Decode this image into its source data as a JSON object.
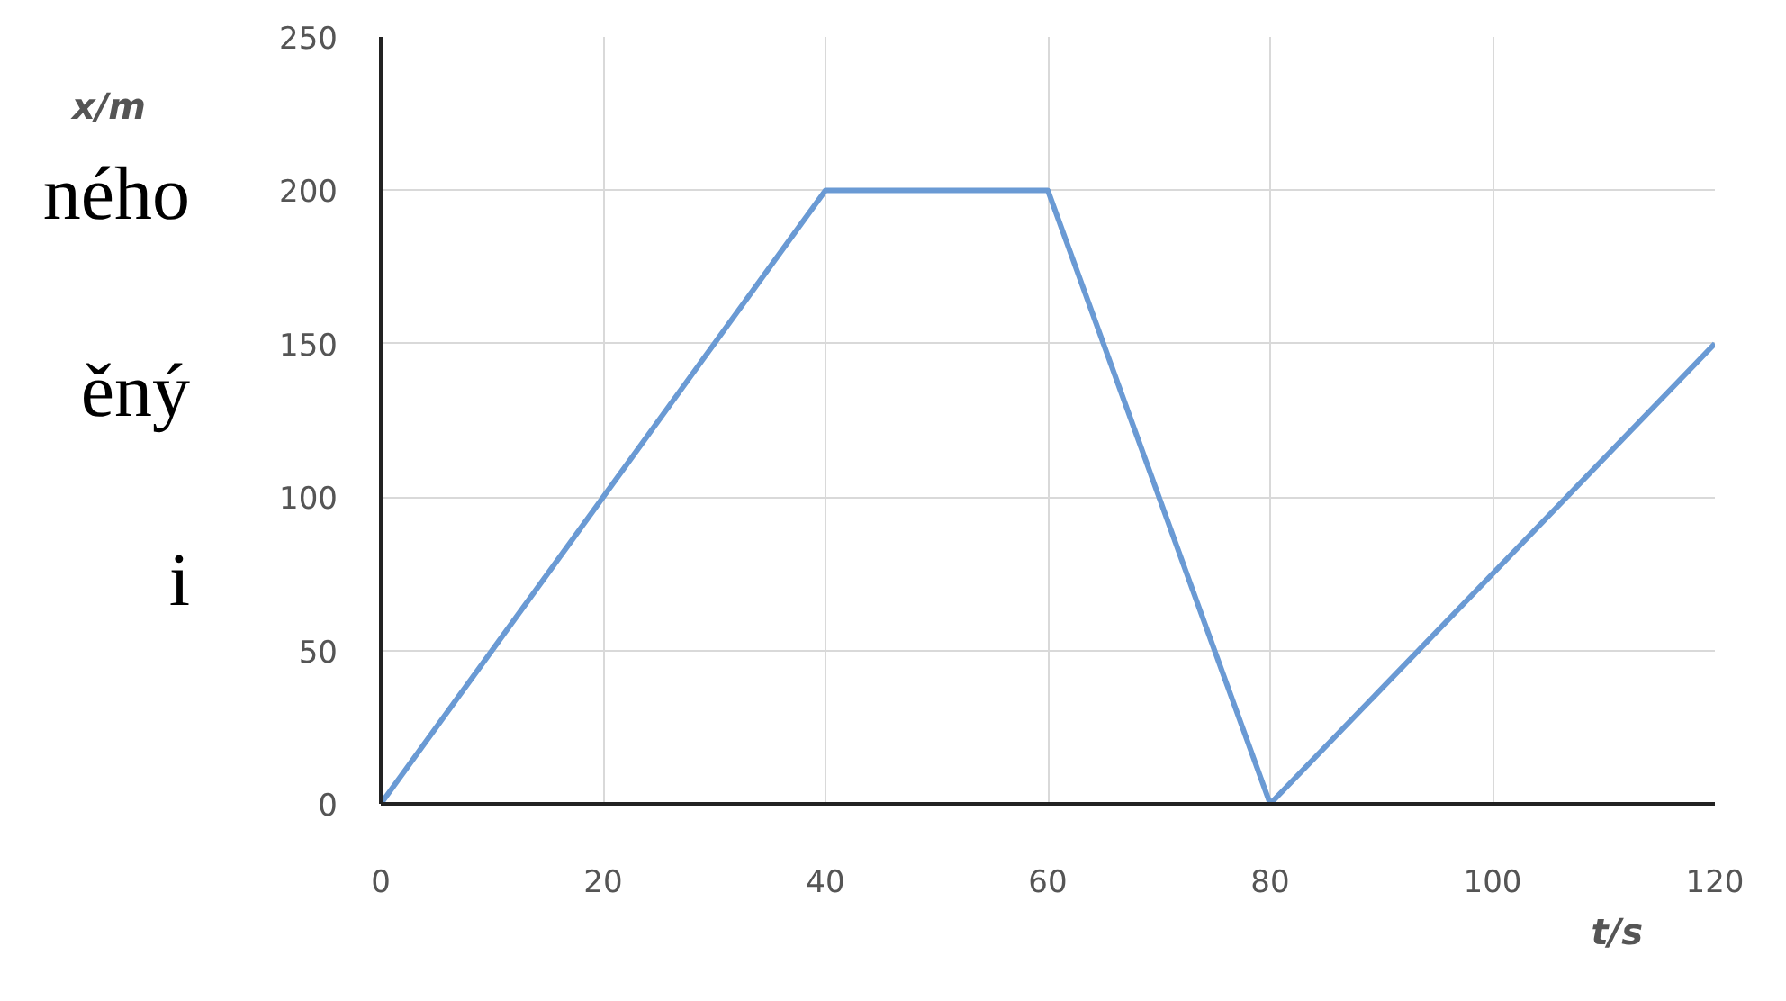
{
  "chart_data": {
    "type": "line",
    "xlabel": "t/s",
    "ylabel": "x/m",
    "x": [
      0,
      40,
      60,
      80,
      120
    ],
    "series": [
      {
        "color": "#6a9ad4",
        "values": [
          0,
          200,
          200,
          0,
          150
        ]
      }
    ],
    "xlim": [
      0,
      120
    ],
    "ylim": [
      0,
      250
    ],
    "xticks": [
      0,
      20,
      40,
      60,
      80,
      100,
      120
    ],
    "yticks": [
      0,
      50,
      100,
      150,
      200,
      250
    ],
    "grid": true,
    "marker": "none",
    "line_style": "solid",
    "annotations": [
      "ného",
      "ěný",
      "i"
    ]
  }
}
